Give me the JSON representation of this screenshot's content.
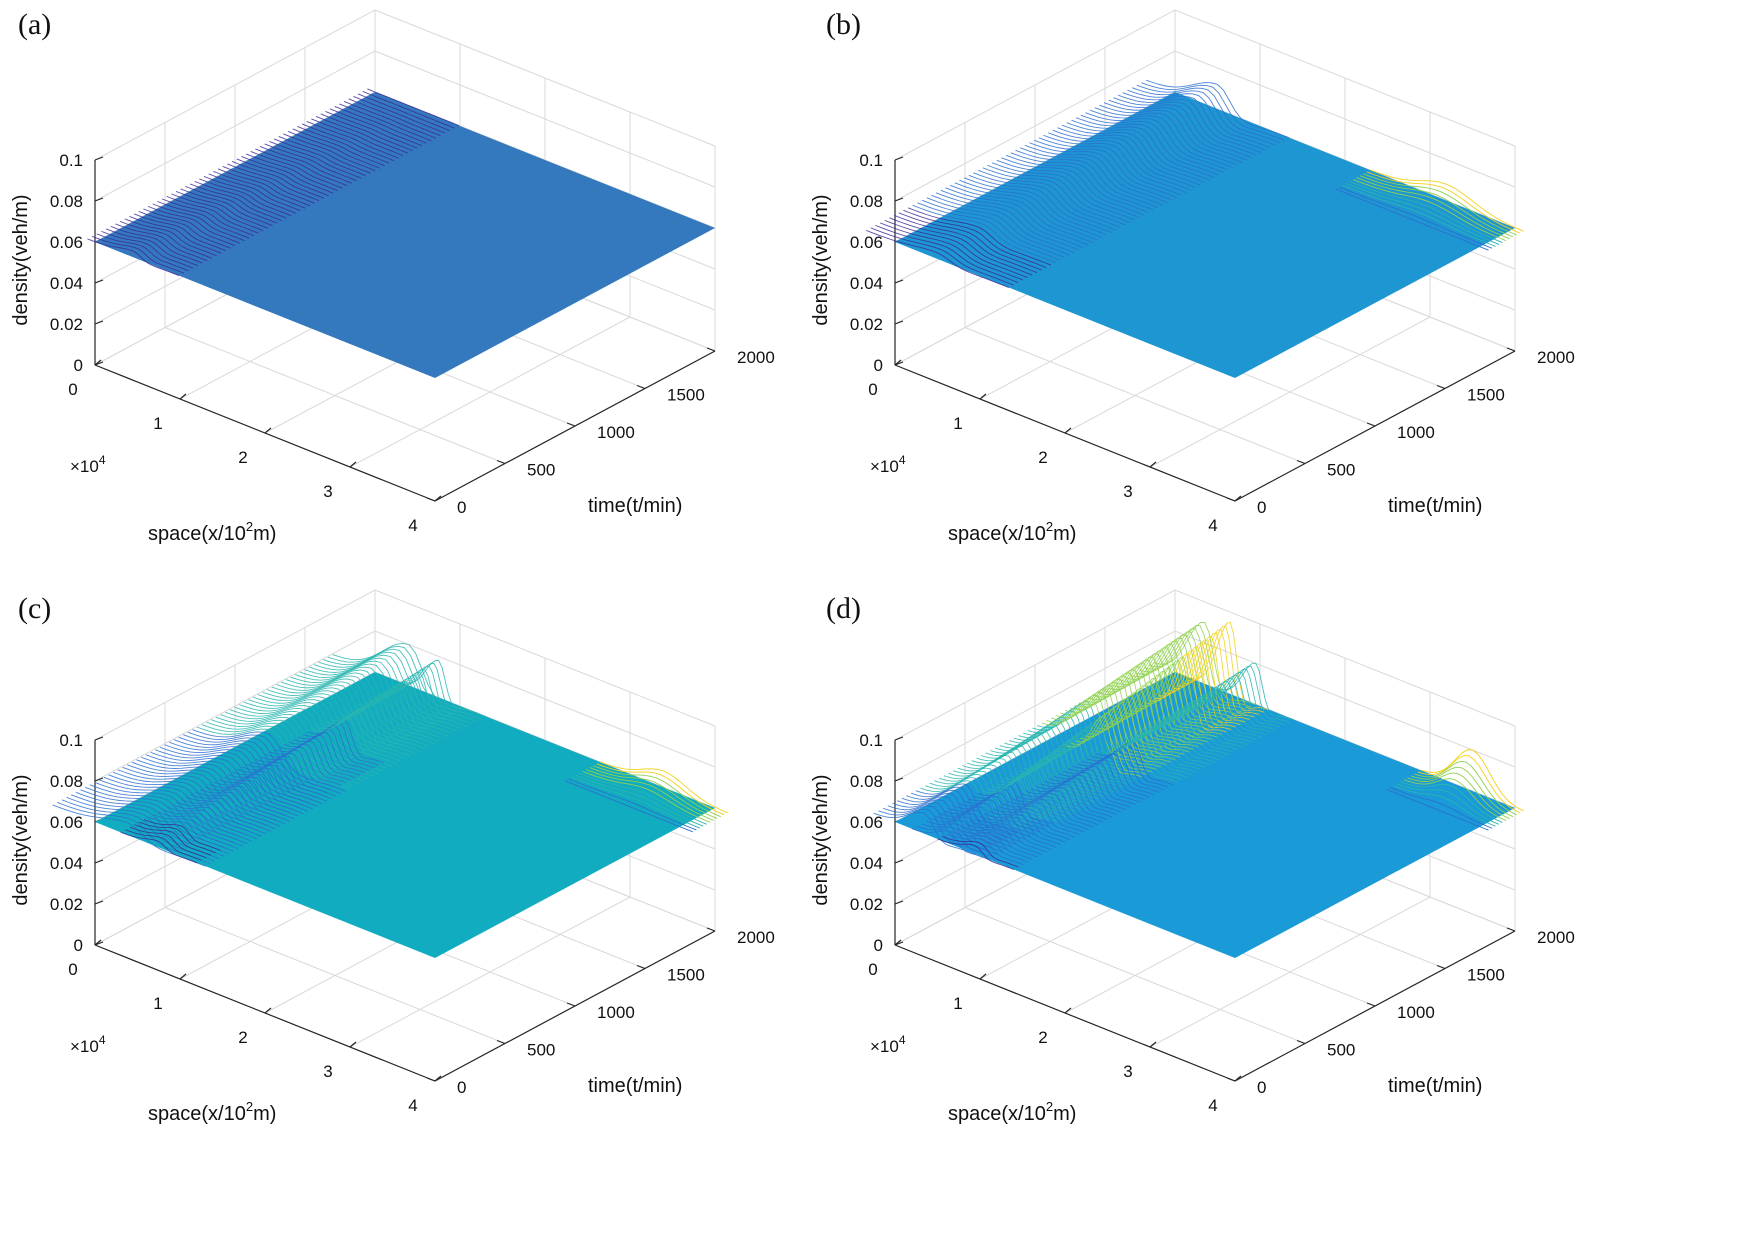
{
  "figure": {
    "panels": [
      {
        "label": "(a)"
      },
      {
        "label": "(b)"
      },
      {
        "label": "(c)"
      },
      {
        "label": "(d)"
      }
    ]
  },
  "chart_data": [
    {
      "type": "surface3d",
      "title": "(a)",
      "xlabel": "space(x/10",
      "xlabel_sup": "2",
      "xlabel_tail": "m)",
      "ylabel": "time(t/min)",
      "zlabel": "density(veh/m)",
      "x_multiplier": "×10",
      "x_multiplier_exp": "4",
      "xlim": [
        0,
        4
      ],
      "ylim": [
        0,
        2000
      ],
      "zlim": [
        0,
        0.1
      ],
      "xticks": [
        "0",
        "1",
        "2",
        "3",
        "4"
      ],
      "yticks": [
        "0",
        "500",
        "1000",
        "1500",
        "2000"
      ],
      "zticks": [
        "0",
        "0.02",
        "0.04",
        "0.06",
        "0.08",
        "0.1"
      ],
      "base_density": 0.06,
      "surface_color": "#3478be",
      "waves": [
        {
          "space": 0.45,
          "t_end": 2000,
          "amp_start": 0.003,
          "amp_end": 0.0,
          "width": 0.18
        }
      ],
      "end_bump": null
    },
    {
      "type": "surface3d",
      "title": "(b)",
      "xlabel": "space(x/10",
      "xlabel_sup": "2",
      "xlabel_tail": "m)",
      "ylabel": "time(t/min)",
      "zlabel": "density(veh/m)",
      "x_multiplier": "×10",
      "x_multiplier_exp": "4",
      "xlim": [
        0,
        4
      ],
      "ylim": [
        0,
        2000
      ],
      "zlim": [
        0,
        0.1
      ],
      "xticks": [
        "0",
        "1",
        "2",
        "3",
        "4"
      ],
      "yticks": [
        "0",
        "500",
        "1000",
        "1500",
        "2000"
      ],
      "zticks": [
        "0",
        "0.02",
        "0.04",
        "0.06",
        "0.08",
        "0.1"
      ],
      "base_density": 0.06,
      "surface_color": "#1e96d2",
      "waves": [
        {
          "space": 0.5,
          "t_end": 2000,
          "amp_start": 0.003,
          "amp_end": 0.012,
          "width": 0.28
        }
      ],
      "end_bump": {
        "space": 3.2,
        "amp": 0.008,
        "width": 0.3
      }
    },
    {
      "type": "surface3d",
      "title": "(c)",
      "xlabel": "space(x/10",
      "xlabel_sup": "2",
      "xlabel_tail": "m)",
      "ylabel": "time(t/min)",
      "zlabel": "density(veh/m)",
      "x_multiplier": "×10",
      "x_multiplier_exp": "4",
      "xlim": [
        0,
        4
      ],
      "ylim": [
        0,
        2000
      ],
      "zlim": [
        0,
        0.1
      ],
      "xticks": [
        "0",
        "1",
        "2",
        "3",
        "4"
      ],
      "yticks": [
        "0",
        "500",
        "1000",
        "1500",
        "2000"
      ],
      "zticks": [
        "0",
        "0.02",
        "0.04",
        "0.06",
        "0.08",
        "0.1"
      ],
      "base_density": 0.06,
      "surface_color": "#12acc0",
      "waves": [
        {
          "space": 0.4,
          "t_end": 2000,
          "amp_start": 0.006,
          "amp_end": 0.02,
          "width": 0.3
        },
        {
          "space": 0.75,
          "t_end": 2000,
          "amp_start": 0.003,
          "amp_end": 0.018,
          "width": 0.15
        }
      ],
      "end_bump": {
        "space": 3.4,
        "amp": 0.008,
        "width": 0.25
      }
    },
    {
      "type": "surface3d",
      "title": "(d)",
      "xlabel": "space(x/10",
      "xlabel_sup": "2",
      "xlabel_tail": "m)",
      "ylabel": "time(t/min)",
      "zlabel": "density(veh/m)",
      "x_multiplier": "×10",
      "x_multiplier_exp": "4",
      "xlim": [
        0,
        4
      ],
      "ylim": [
        0,
        2000
      ],
      "zlim": [
        0,
        0.1
      ],
      "xticks": [
        "0",
        "1",
        "2",
        "3",
        "4"
      ],
      "yticks": [
        "0",
        "500",
        "1000",
        "1500",
        "2000"
      ],
      "zticks": [
        "0",
        "0.02",
        "0.04",
        "0.06",
        "0.08",
        "0.1"
      ],
      "base_density": 0.06,
      "surface_color": "#1a9ad6",
      "waves": [
        {
          "space": 0.35,
          "t_end": 2000,
          "amp_start": 0.01,
          "amp_end": 0.03,
          "width": 0.2
        },
        {
          "space": 0.65,
          "t_end": 2000,
          "amp_start": 0.006,
          "amp_end": 0.035,
          "width": 0.15
        },
        {
          "space": 0.95,
          "t_end": 2000,
          "amp_start": 0.004,
          "amp_end": 0.02,
          "width": 0.15
        }
      ],
      "end_bump": {
        "space": 3.5,
        "amp": 0.02,
        "width": 0.2
      }
    }
  ]
}
